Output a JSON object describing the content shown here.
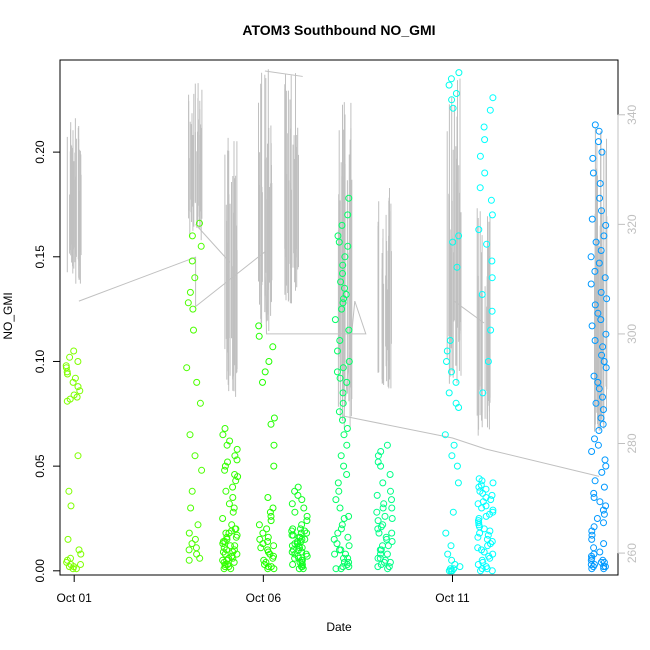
{
  "chart_data": {
    "type": "scatter",
    "title": "ATOM3 Southbound NO_GMI",
    "xlabel": "Date",
    "ylabel": "NO_GMI",
    "ylabel_right": "",
    "x_ticks": [
      {
        "date": "2017-10-01",
        "label": "Oct 01"
      },
      {
        "date": "2017-10-06",
        "label": "Oct 06"
      },
      {
        "date": "2017-10-11",
        "label": "Oct 11"
      }
    ],
    "y_ticks": [
      {
        "value": 0.0,
        "label": "0.00"
      },
      {
        "value": 0.05,
        "label": "0.05"
      },
      {
        "value": 0.1,
        "label": "0.10"
      },
      {
        "value": 0.15,
        "label": "0.15"
      },
      {
        "value": 0.2,
        "label": "0.20"
      }
    ],
    "y2_ticks": [
      {
        "value": 260,
        "label": "260"
      },
      {
        "value": 280,
        "label": "280"
      },
      {
        "value": 300,
        "label": "300"
      },
      {
        "value": 320,
        "label": "320"
      },
      {
        "value": 340,
        "label": "340"
      }
    ],
    "xlim": [
      "2017-09-30T15:00",
      "2017-10-15T09:00"
    ],
    "ylim": [
      -0.002,
      0.244
    ],
    "y2lim": [
      256,
      350
    ],
    "grid": false,
    "legend": "none",
    "point_series": [
      {
        "center": "2017-10-01T00:00",
        "values": [
          0.105,
          0.102,
          0.1,
          0.098,
          0.097,
          0.095,
          0.094,
          0.092,
          0.09,
          0.088,
          0.086,
          0.084,
          0.083,
          0.082,
          0.081,
          0.055,
          0.038,
          0.031,
          0.015,
          0.01,
          0.008,
          0.006,
          0.005,
          0.004,
          0.003,
          0.003,
          0.002,
          0.002,
          0.001,
          0.001
        ],
        "color": "#7fff00"
      },
      {
        "center": "2017-10-04T04:00",
        "values": [
          0.166,
          0.16,
          0.155,
          0.148,
          0.14,
          0.133,
          0.128,
          0.125,
          0.115,
          0.097,
          0.09,
          0.08,
          0.065,
          0.055,
          0.048,
          0.038,
          0.03,
          0.022,
          0.018,
          0.015,
          0.013,
          0.011,
          0.01,
          0.008,
          0.006,
          0.005
        ],
        "color": "#4cff00"
      },
      {
        "center": "2017-10-05T03:00",
        "values": [
          0.068,
          0.065,
          0.062,
          0.06,
          0.058,
          0.055,
          0.053,
          0.052,
          0.05,
          0.048,
          0.046,
          0.045,
          0.043,
          0.04,
          0.038,
          0.035,
          0.032,
          0.03,
          0.028,
          0.025,
          0.022,
          0.02,
          0.019,
          0.018,
          0.017,
          0.016,
          0.015,
          0.014,
          0.013,
          0.012,
          0.011,
          0.01,
          0.009,
          0.008,
          0.007,
          0.006,
          0.005,
          0.004,
          0.003,
          0.002,
          0.001,
          0.001,
          0.002,
          0.003,
          0.004,
          0.005,
          0.006,
          0.007,
          0.008,
          0.009,
          0.01,
          0.012,
          0.014,
          0.016,
          0.018,
          0.02
        ],
        "color": "#33ff00"
      },
      {
        "center": "2017-10-06T02:00",
        "values": [
          0.117,
          0.112,
          0.107,
          0.1,
          0.095,
          0.09,
          0.073,
          0.07,
          0.06,
          0.05,
          0.035,
          0.03,
          0.028,
          0.026,
          0.024,
          0.022,
          0.02,
          0.018,
          0.016,
          0.015,
          0.014,
          0.013,
          0.012,
          0.011,
          0.01,
          0.009,
          0.008,
          0.007,
          0.006,
          0.005,
          0.004,
          0.003,
          0.002,
          0.001,
          0.001,
          0.002
        ],
        "color": "#22ff00"
      },
      {
        "center": "2017-10-06T23:00",
        "values": [
          0.04,
          0.038,
          0.036,
          0.034,
          0.032,
          0.03,
          0.028,
          0.026,
          0.024,
          0.022,
          0.02,
          0.019,
          0.018,
          0.017,
          0.016,
          0.015,
          0.014,
          0.013,
          0.012,
          0.011,
          0.01,
          0.009,
          0.008,
          0.007,
          0.006,
          0.005,
          0.004,
          0.003,
          0.002,
          0.001,
          0.001,
          0.002,
          0.003,
          0.004,
          0.005,
          0.006,
          0.007,
          0.008,
          0.009,
          0.01,
          0.011,
          0.012,
          0.013,
          0.014,
          0.015,
          0.016,
          0.017,
          0.018,
          0.019,
          0.02
        ],
        "color": "#11ff22"
      },
      {
        "center": "2017-10-08T02:00",
        "values": [
          0.178,
          0.17,
          0.165,
          0.16,
          0.157,
          0.155,
          0.15,
          0.146,
          0.142,
          0.138,
          0.135,
          0.132,
          0.13,
          0.128,
          0.125,
          0.12,
          0.115,
          0.11,
          0.105,
          0.1,
          0.097,
          0.095,
          0.092,
          0.09,
          0.085,
          0.08,
          0.076,
          0.072,
          0.068,
          0.065,
          0.06,
          0.055,
          0.05,
          0.046,
          0.042,
          0.038,
          0.034,
          0.03,
          0.026,
          0.022,
          0.018,
          0.015,
          0.012,
          0.01,
          0.008,
          0.006,
          0.004,
          0.003,
          0.002,
          0.001,
          0.001,
          0.002,
          0.004,
          0.006,
          0.008,
          0.01,
          0.013,
          0.016,
          0.02,
          0.025
        ],
        "color": "#00ff66"
      },
      {
        "center": "2017-10-09T05:00",
        "values": [
          0.06,
          0.057,
          0.055,
          0.052,
          0.05,
          0.046,
          0.042,
          0.038,
          0.036,
          0.034,
          0.032,
          0.03,
          0.028,
          0.026,
          0.024,
          0.022,
          0.02,
          0.018,
          0.016,
          0.014,
          0.012,
          0.01,
          0.008,
          0.006,
          0.005,
          0.004,
          0.003,
          0.002,
          0.001,
          0.002,
          0.004,
          0.006,
          0.008,
          0.01,
          0.012,
          0.015,
          0.018,
          0.021,
          0.025,
          0.03
        ],
        "color": "#00ff88"
      },
      {
        "center": "2017-10-11T00:00",
        "values": [
          0.238,
          0.235,
          0.232,
          0.228,
          0.225,
          0.221,
          0.16,
          0.157,
          0.145,
          0.11,
          0.105,
          0.1,
          0.095,
          0.09,
          0.085,
          0.08,
          0.078,
          0.065,
          0.06,
          0.055,
          0.05,
          0.042,
          0.028,
          0.018,
          0.012,
          0.008,
          0.005,
          0.003,
          0.002,
          0.001,
          0.001,
          0.0,
          0.0,
          0.0
        ],
        "color": "#00ffee"
      },
      {
        "center": "2017-10-11T21:00",
        "values": [
          0.226,
          0.22,
          0.212,
          0.206,
          0.198,
          0.19,
          0.183,
          0.177,
          0.17,
          0.163,
          0.156,
          0.148,
          0.14,
          0.132,
          0.124,
          0.115,
          0.1,
          0.085,
          0.044,
          0.043,
          0.042,
          0.041,
          0.04,
          0.039,
          0.038,
          0.037,
          0.036,
          0.035,
          0.034,
          0.033,
          0.032,
          0.031,
          0.03,
          0.029,
          0.028,
          0.027,
          0.026,
          0.025,
          0.024,
          0.023,
          0.022,
          0.021,
          0.02,
          0.019,
          0.018,
          0.017,
          0.016,
          0.015,
          0.014,
          0.013,
          0.012,
          0.011,
          0.01,
          0.009,
          0.008,
          0.007,
          0.006,
          0.005,
          0.004,
          0.003,
          0.002,
          0.001,
          0.001,
          0.0,
          0.0
        ],
        "color": "#00ffff"
      },
      {
        "center": "2017-10-14T21:00",
        "values": [
          0.213,
          0.21,
          0.205,
          0.2,
          0.197,
          0.19,
          0.185,
          0.178,
          0.172,
          0.168,
          0.165,
          0.16,
          0.157,
          0.153,
          0.15,
          0.147,
          0.143,
          0.14,
          0.137,
          0.133,
          0.13,
          0.127,
          0.123,
          0.12,
          0.117,
          0.113,
          0.11,
          0.107,
          0.103,
          0.1,
          0.097,
          0.093,
          0.09,
          0.087,
          0.083,
          0.08,
          0.077,
          0.073,
          0.07,
          0.067,
          0.063,
          0.06,
          0.057,
          0.053,
          0.05,
          0.047,
          0.043,
          0.04,
          0.037,
          0.035,
          0.033,
          0.031,
          0.029,
          0.027,
          0.025,
          0.023,
          0.021,
          0.019,
          0.017,
          0.015,
          0.013,
          0.011,
          0.009,
          0.008,
          0.007,
          0.006,
          0.005,
          0.004,
          0.003,
          0.002,
          0.002,
          0.001,
          0.001,
          0.002,
          0.003,
          0.004,
          0.005
        ],
        "color": "#0099ff"
      }
    ],
    "spike_groups": [
      {
        "center": "2017-10-01T00:00",
        "top": 341,
        "bottom": 309,
        "color": "#c0c0c0"
      },
      {
        "center": "2017-10-04T05:00",
        "top": 348,
        "bottom": 317,
        "color": "#c0c0c0"
      },
      {
        "center": "2017-10-05T03:00",
        "top": 336,
        "bottom": 288,
        "color": "#c0c0c0"
      },
      {
        "center": "2017-10-06T01:00",
        "top": 349,
        "bottom": 300,
        "color": "#c0c0c0"
      },
      {
        "center": "2017-10-06T18:00",
        "top": 348,
        "bottom": 305,
        "color": "#c0c0c0"
      },
      {
        "center": "2017-10-08T04:00",
        "top": 345,
        "bottom": 282,
        "color": "#c0c0c0"
      },
      {
        "center": "2017-10-09T05:00",
        "top": 327,
        "bottom": 290,
        "color": "#c0c0c0"
      },
      {
        "center": "2017-10-11T01:00",
        "top": 347,
        "bottom": 288,
        "color": "#c0c0c0"
      },
      {
        "center": "2017-10-11T20:00",
        "top": 323,
        "bottom": 280,
        "color": "#c0c0c0"
      },
      {
        "center": "2017-10-14T22:00",
        "top": 338,
        "bottom": 282,
        "color": "#c0c0c0"
      }
    ],
    "connector_path": [
      {
        "date": "2017-10-01T03:00",
        "y2": 306
      },
      {
        "date": "2017-10-04T05:00",
        "y2": 314
      },
      {
        "date": "2017-10-04T05:00",
        "y2": 305
      },
      {
        "date": "2017-10-06T01:00",
        "y2": 315
      },
      {
        "date": "2017-10-06T02:00",
        "y2": 300
      },
      {
        "date": "2017-10-08T17:00",
        "y2": 300
      },
      {
        "date": "2017-10-08T10:00",
        "y2": 306
      },
      {
        "date": "2017-10-08T03:00",
        "y2": 285
      },
      {
        "date": "2017-10-11T00:00",
        "y2": 281
      },
      {
        "date": "2017-10-11T21:00",
        "y2": 279
      },
      {
        "date": "2017-10-14T21:00",
        "y2": 274
      }
    ],
    "extra_lines": [
      {
        "from": {
          "date": "2017-10-04T05:00",
          "y2": 320
        },
        "to": {
          "date": "2017-10-05T03:00",
          "y2": 313
        }
      },
      {
        "from": {
          "date": "2017-10-06T01:00",
          "y2": 348
        },
        "to": {
          "date": "2017-10-07T01:00",
          "y2": 347
        }
      },
      {
        "from": {
          "date": "2017-10-11T01:00",
          "y2": 306
        },
        "to": {
          "date": "2017-10-11T20:00",
          "y2": 302
        }
      }
    ]
  }
}
